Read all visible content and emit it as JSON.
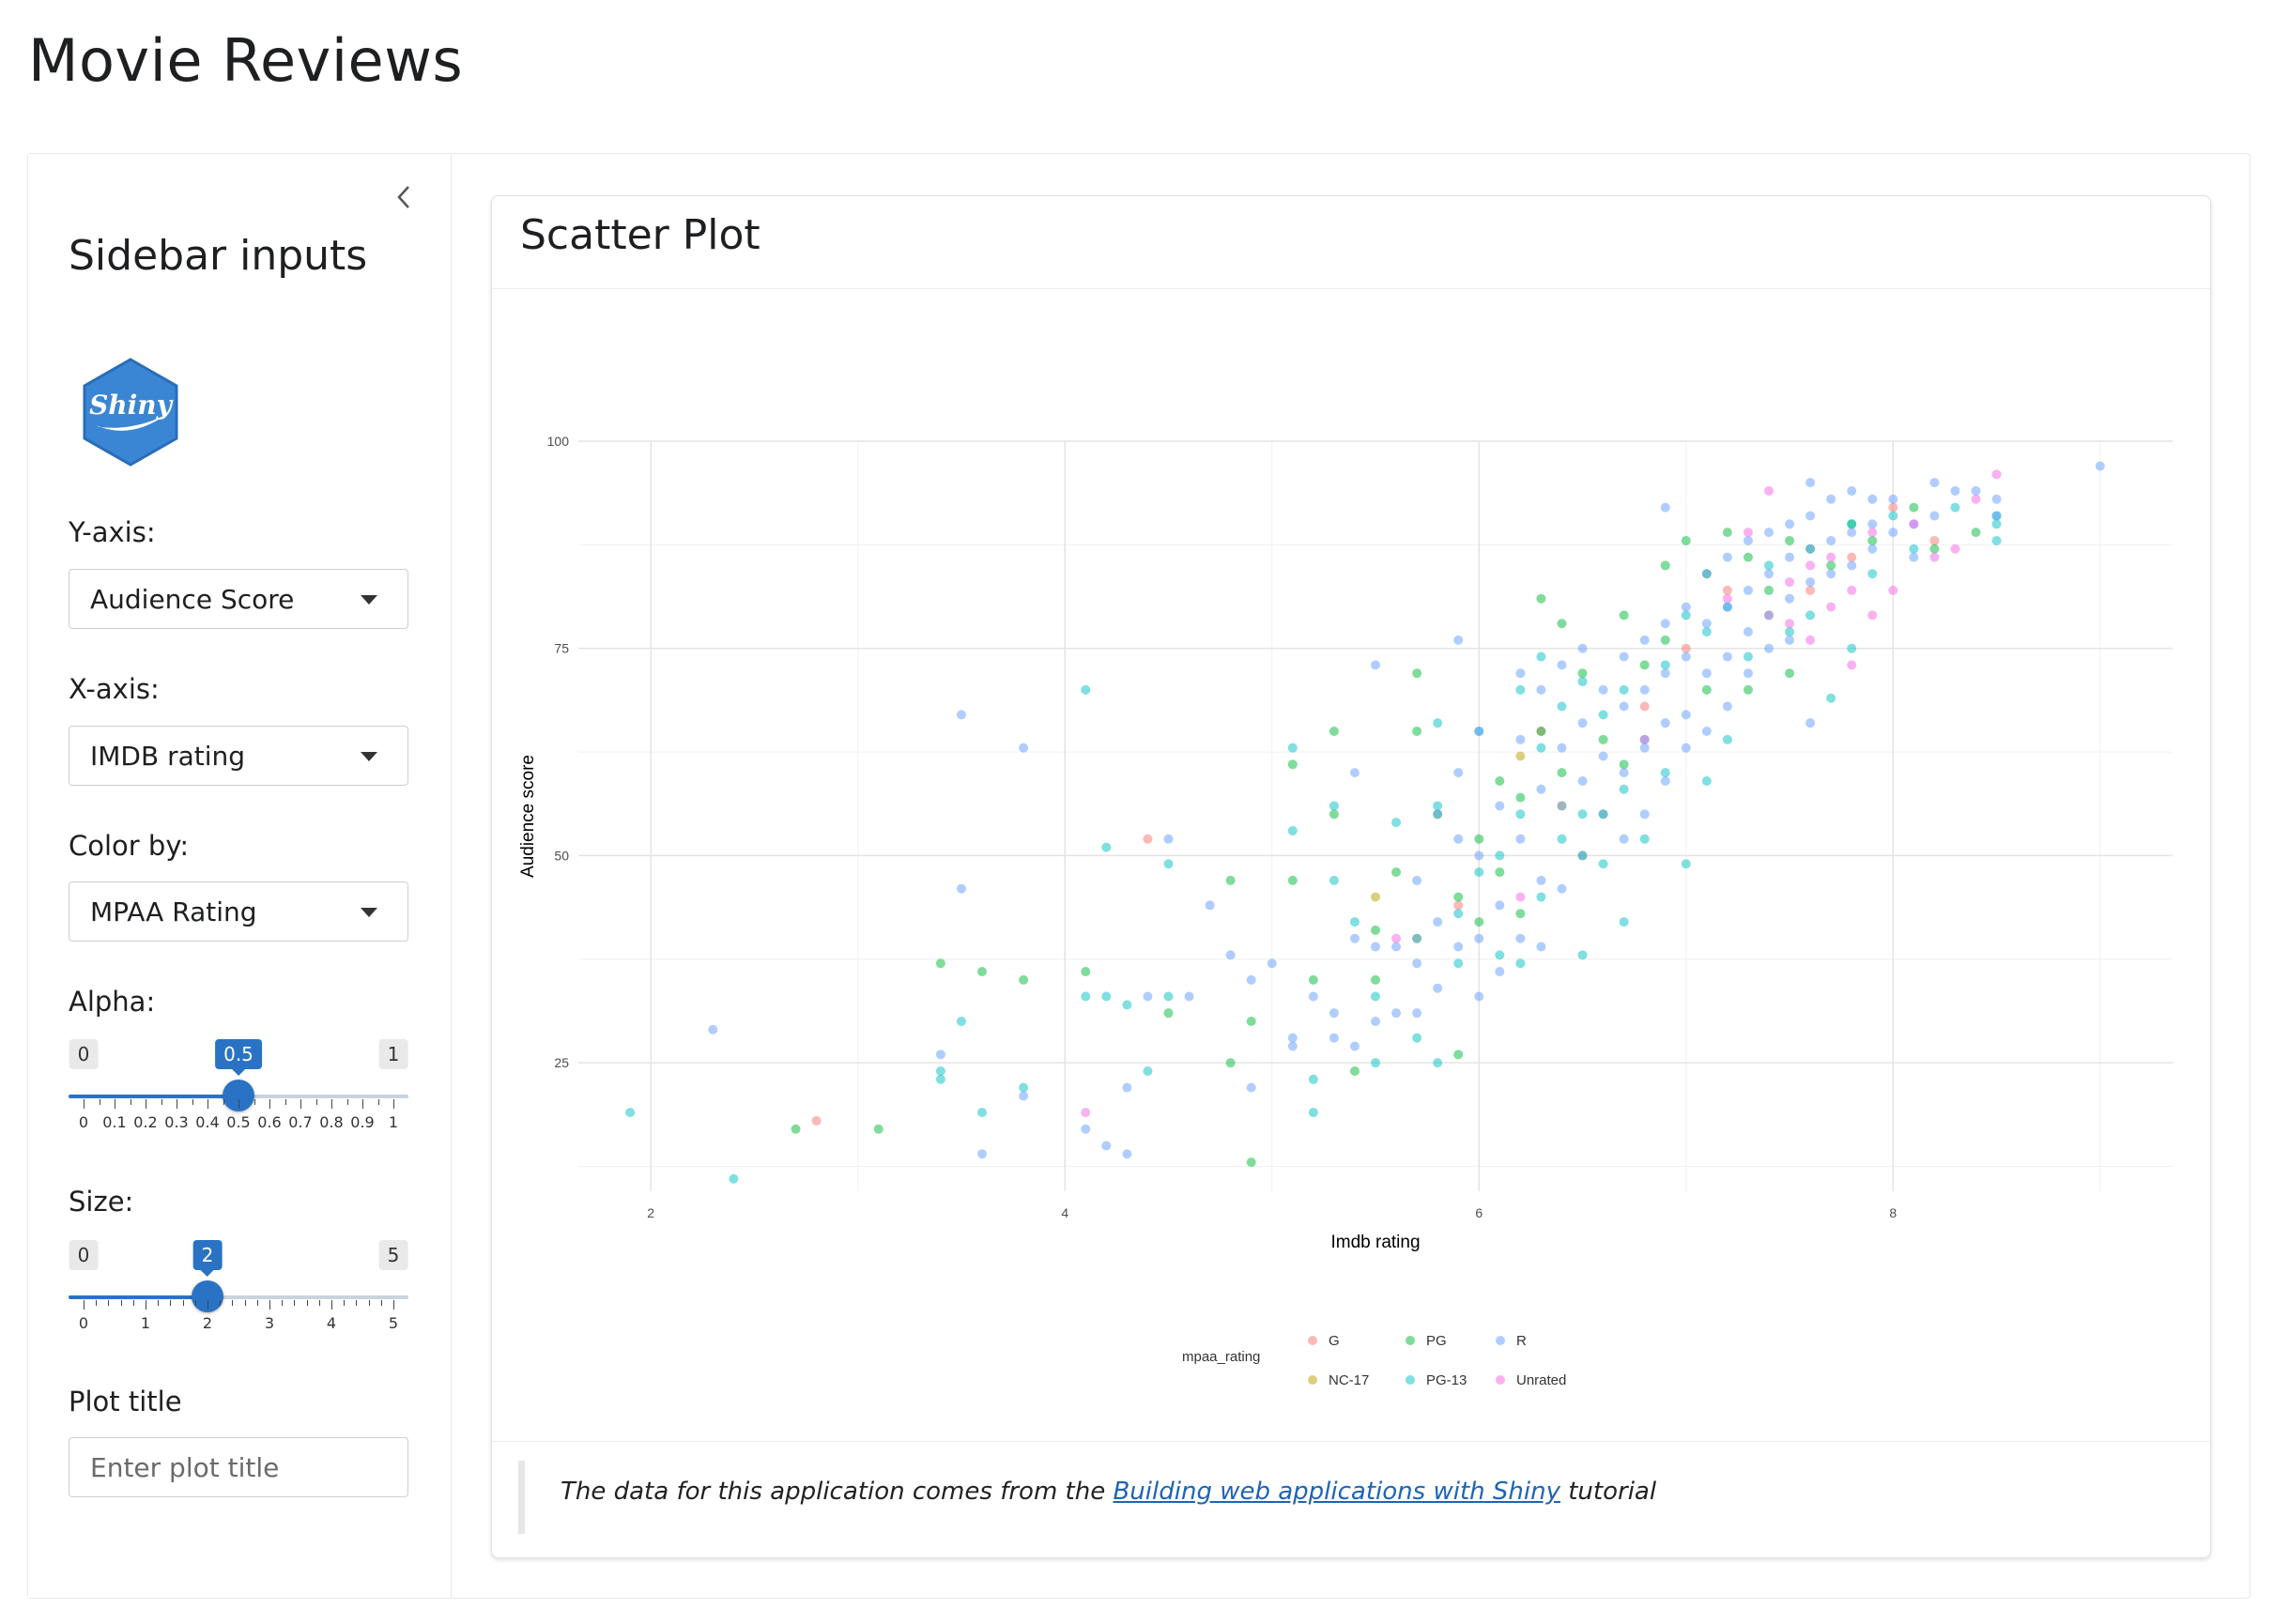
{
  "app": {
    "title": "Movie Reviews"
  },
  "sidebar": {
    "heading": "Sidebar inputs",
    "logo_text": "Shiny",
    "y_axis": {
      "label": "Y-axis:",
      "selected": "Audience Score"
    },
    "x_axis": {
      "label": "X-axis:",
      "selected": "IMDB rating"
    },
    "color_by": {
      "label": "Color by:",
      "selected": "MPAA Rating"
    },
    "alpha": {
      "label": "Alpha:",
      "min": 0,
      "max": 1,
      "value": 0.5,
      "min_label": "0",
      "max_label": "1",
      "value_label": "0.5",
      "tick_labels": [
        "0",
        "0.1",
        "0.2",
        "0.3",
        "0.4",
        "0.5",
        "0.6",
        "0.7",
        "0.8",
        "0.9",
        "1"
      ]
    },
    "size": {
      "label": "Size:",
      "min": 0,
      "max": 5,
      "value": 2,
      "min_label": "0",
      "max_label": "5",
      "value_label": "2",
      "tick_labels": [
        "0",
        "1",
        "2",
        "3",
        "4",
        "5"
      ]
    },
    "plot_title": {
      "label": "Plot title",
      "value": "",
      "placeholder": "Enter plot title"
    }
  },
  "card": {
    "title": "Scatter Plot",
    "footer": {
      "text_before": "The data for this application comes from the ",
      "link_text": "Building web applications with Shiny",
      "text_after": " tutorial"
    }
  },
  "chart_data": {
    "type": "scatter",
    "title": "",
    "xlabel": "Imdb rating",
    "ylabel": "Audience score",
    "xlim": [
      1.65,
      9.35
    ],
    "ylim": [
      9.5,
      100
    ],
    "x_ticks": [
      2,
      4,
      6,
      8
    ],
    "y_ticks": [
      25,
      50,
      75,
      100
    ],
    "grid": true,
    "alpha": 0.5,
    "legend": {
      "title": "mpaa_rating",
      "position": "bottom"
    },
    "colors": {
      "G": "#F8766D",
      "NC-17": "#B79F00",
      "PG": "#00BA38",
      "PG-13": "#00BFC4",
      "R": "#619CFF",
      "Unrated": "#F564E3"
    },
    "series": [
      {
        "name": "G",
        "points": [
          [
            2.8,
            18
          ],
          [
            4.4,
            52
          ],
          [
            5.7,
            40
          ],
          [
            6.8,
            68
          ],
          [
            7.0,
            75
          ],
          [
            7.2,
            82
          ],
          [
            7.4,
            79
          ],
          [
            7.6,
            82
          ],
          [
            7.8,
            86
          ],
          [
            8.0,
            92
          ],
          [
            8.2,
            88
          ],
          [
            6.3,
            65
          ],
          [
            5.9,
            44
          ]
        ]
      },
      {
        "name": "NC-17",
        "points": [
          [
            6.4,
            56
          ],
          [
            6.2,
            62
          ],
          [
            5.5,
            45
          ]
        ]
      },
      {
        "name": "PG",
        "points": [
          [
            2.7,
            17
          ],
          [
            3.1,
            17
          ],
          [
            3.4,
            37
          ],
          [
            3.6,
            36
          ],
          [
            3.8,
            35
          ],
          [
            4.1,
            36
          ],
          [
            4.5,
            31
          ],
          [
            4.8,
            47
          ],
          [
            4.8,
            25
          ],
          [
            4.9,
            30
          ],
          [
            4.9,
            13
          ],
          [
            5.1,
            61
          ],
          [
            5.1,
            47
          ],
          [
            5.2,
            35
          ],
          [
            5.3,
            65
          ],
          [
            5.3,
            55
          ],
          [
            5.4,
            24
          ],
          [
            5.5,
            41
          ],
          [
            5.6,
            48
          ],
          [
            5.7,
            72
          ],
          [
            5.7,
            65
          ],
          [
            5.8,
            55
          ],
          [
            5.9,
            45
          ],
          [
            5.9,
            26
          ],
          [
            6.0,
            52
          ],
          [
            6.1,
            48
          ],
          [
            6.2,
            57
          ],
          [
            6.2,
            43
          ],
          [
            6.3,
            81
          ],
          [
            6.3,
            65
          ],
          [
            6.4,
            78
          ],
          [
            6.4,
            60
          ],
          [
            6.5,
            72
          ],
          [
            6.5,
            50
          ],
          [
            6.6,
            64
          ],
          [
            6.7,
            79
          ],
          [
            6.7,
            61
          ],
          [
            6.8,
            73
          ],
          [
            6.9,
            85
          ],
          [
            6.9,
            76
          ],
          [
            7.0,
            88
          ],
          [
            7.1,
            84
          ],
          [
            7.1,
            70
          ],
          [
            7.2,
            89
          ],
          [
            7.3,
            86
          ],
          [
            7.3,
            70
          ],
          [
            7.4,
            82
          ],
          [
            7.5,
            88
          ],
          [
            7.5,
            72
          ],
          [
            7.6,
            87
          ],
          [
            7.7,
            85
          ],
          [
            7.8,
            90
          ],
          [
            7.9,
            88
          ],
          [
            8.1,
            92
          ],
          [
            8.2,
            87
          ],
          [
            8.4,
            89
          ],
          [
            6.0,
            42
          ],
          [
            5.5,
            35
          ],
          [
            6.6,
            55
          ],
          [
            6.1,
            59
          ]
        ]
      },
      {
        "name": "PG-13",
        "points": [
          [
            1.9,
            19
          ],
          [
            2.4,
            11
          ],
          [
            3.4,
            24
          ],
          [
            3.4,
            23
          ],
          [
            3.5,
            30
          ],
          [
            3.6,
            19
          ],
          [
            3.8,
            22
          ],
          [
            4.1,
            70
          ],
          [
            4.1,
            33
          ],
          [
            4.2,
            51
          ],
          [
            4.2,
            33
          ],
          [
            4.3,
            32
          ],
          [
            4.4,
            24
          ],
          [
            4.5,
            49
          ],
          [
            4.5,
            33
          ],
          [
            5.1,
            53
          ],
          [
            5.1,
            63
          ],
          [
            5.2,
            19
          ],
          [
            5.2,
            23
          ],
          [
            5.3,
            47
          ],
          [
            5.3,
            56
          ],
          [
            5.4,
            42
          ],
          [
            5.5,
            33
          ],
          [
            5.5,
            25
          ],
          [
            5.6,
            54
          ],
          [
            5.7,
            40
          ],
          [
            5.7,
            28
          ],
          [
            5.8,
            66
          ],
          [
            5.8,
            56
          ],
          [
            5.8,
            25
          ],
          [
            5.9,
            43
          ],
          [
            5.9,
            37
          ],
          [
            6.0,
            65
          ],
          [
            6.0,
            48
          ],
          [
            6.1,
            50
          ],
          [
            6.1,
            38
          ],
          [
            6.2,
            70
          ],
          [
            6.2,
            55
          ],
          [
            6.2,
            37
          ],
          [
            6.3,
            74
          ],
          [
            6.3,
            63
          ],
          [
            6.3,
            45
          ],
          [
            6.4,
            68
          ],
          [
            6.4,
            52
          ],
          [
            6.5,
            71
          ],
          [
            6.5,
            55
          ],
          [
            6.5,
            38
          ],
          [
            6.6,
            67
          ],
          [
            6.6,
            49
          ],
          [
            6.7,
            70
          ],
          [
            6.7,
            58
          ],
          [
            6.7,
            42
          ],
          [
            6.8,
            64
          ],
          [
            6.8,
            52
          ],
          [
            6.9,
            73
          ],
          [
            6.9,
            60
          ],
          [
            7.0,
            79
          ],
          [
            7.0,
            49
          ],
          [
            7.1,
            77
          ],
          [
            7.1,
            59
          ],
          [
            7.2,
            80
          ],
          [
            7.2,
            64
          ],
          [
            7.3,
            74
          ],
          [
            7.4,
            85
          ],
          [
            7.5,
            77
          ],
          [
            7.6,
            79
          ],
          [
            7.7,
            69
          ],
          [
            7.8,
            75
          ],
          [
            7.8,
            90
          ],
          [
            7.9,
            84
          ],
          [
            8.0,
            91
          ],
          [
            8.1,
            87
          ],
          [
            8.3,
            92
          ],
          [
            8.5,
            88
          ],
          [
            8.5,
            91
          ],
          [
            8.5,
            90
          ]
        ]
      },
      {
        "name": "R",
        "points": [
          [
            2.3,
            29
          ],
          [
            3.4,
            26
          ],
          [
            3.5,
            67
          ],
          [
            3.5,
            46
          ],
          [
            3.6,
            14
          ],
          [
            3.8,
            63
          ],
          [
            3.8,
            21
          ],
          [
            4.1,
            17
          ],
          [
            4.2,
            15
          ],
          [
            4.3,
            14
          ],
          [
            4.3,
            22
          ],
          [
            4.4,
            33
          ],
          [
            4.5,
            52
          ],
          [
            4.6,
            33
          ],
          [
            4.7,
            44
          ],
          [
            4.8,
            38
          ],
          [
            4.9,
            35
          ],
          [
            4.9,
            22
          ],
          [
            5.0,
            37
          ],
          [
            5.1,
            28
          ],
          [
            5.1,
            27
          ],
          [
            5.2,
            33
          ],
          [
            5.3,
            31
          ],
          [
            5.3,
            28
          ],
          [
            5.4,
            60
          ],
          [
            5.4,
            40
          ],
          [
            5.4,
            27
          ],
          [
            5.5,
            73
          ],
          [
            5.5,
            39
          ],
          [
            5.5,
            30
          ],
          [
            5.6,
            39
          ],
          [
            5.6,
            31
          ],
          [
            5.7,
            47
          ],
          [
            5.7,
            37
          ],
          [
            5.7,
            31
          ],
          [
            5.8,
            55
          ],
          [
            5.8,
            42
          ],
          [
            5.8,
            34
          ],
          [
            5.9,
            76
          ],
          [
            5.9,
            60
          ],
          [
            5.9,
            52
          ],
          [
            5.9,
            39
          ],
          [
            6.0,
            65
          ],
          [
            6.0,
            50
          ],
          [
            6.0,
            40
          ],
          [
            6.0,
            33
          ],
          [
            6.1,
            56
          ],
          [
            6.1,
            44
          ],
          [
            6.1,
            36
          ],
          [
            6.2,
            72
          ],
          [
            6.2,
            64
          ],
          [
            6.2,
            52
          ],
          [
            6.2,
            40
          ],
          [
            6.3,
            70
          ],
          [
            6.3,
            58
          ],
          [
            6.3,
            47
          ],
          [
            6.3,
            39
          ],
          [
            6.4,
            73
          ],
          [
            6.4,
            63
          ],
          [
            6.4,
            56
          ],
          [
            6.4,
            46
          ],
          [
            6.5,
            75
          ],
          [
            6.5,
            66
          ],
          [
            6.5,
            59
          ],
          [
            6.5,
            50
          ],
          [
            6.6,
            70
          ],
          [
            6.6,
            62
          ],
          [
            6.6,
            55
          ],
          [
            6.7,
            74
          ],
          [
            6.7,
            68
          ],
          [
            6.7,
            60
          ],
          [
            6.7,
            52
          ],
          [
            6.8,
            76
          ],
          [
            6.8,
            70
          ],
          [
            6.8,
            63
          ],
          [
            6.8,
            55
          ],
          [
            6.9,
            78
          ],
          [
            6.9,
            72
          ],
          [
            6.9,
            66
          ],
          [
            6.9,
            59
          ],
          [
            6.9,
            92
          ],
          [
            7.0,
            80
          ],
          [
            7.0,
            74
          ],
          [
            7.0,
            67
          ],
          [
            7.1,
            84
          ],
          [
            7.1,
            78
          ],
          [
            7.1,
            72
          ],
          [
            7.1,
            65
          ],
          [
            7.2,
            86
          ],
          [
            7.2,
            80
          ],
          [
            7.2,
            74
          ],
          [
            7.2,
            68
          ],
          [
            7.3,
            88
          ],
          [
            7.3,
            82
          ],
          [
            7.3,
            77
          ],
          [
            7.3,
            72
          ],
          [
            7.4,
            89
          ],
          [
            7.4,
            84
          ],
          [
            7.4,
            79
          ],
          [
            7.4,
            75
          ],
          [
            7.5,
            90
          ],
          [
            7.5,
            86
          ],
          [
            7.5,
            81
          ],
          [
            7.5,
            76
          ],
          [
            7.6,
            91
          ],
          [
            7.6,
            87
          ],
          [
            7.6,
            83
          ],
          [
            7.6,
            66
          ],
          [
            7.7,
            93
          ],
          [
            7.7,
            88
          ],
          [
            7.7,
            84
          ],
          [
            7.8,
            94
          ],
          [
            7.8,
            89
          ],
          [
            7.8,
            85
          ],
          [
            7.9,
            93
          ],
          [
            7.9,
            90
          ],
          [
            7.9,
            87
          ],
          [
            8.0,
            93
          ],
          [
            8.0,
            89
          ],
          [
            8.1,
            90
          ],
          [
            8.1,
            86
          ],
          [
            8.2,
            95
          ],
          [
            8.2,
            91
          ],
          [
            8.3,
            94
          ],
          [
            8.4,
            94
          ],
          [
            8.5,
            93
          ],
          [
            8.5,
            91
          ],
          [
            9.0,
            97
          ],
          [
            7.6,
            95
          ],
          [
            7.0,
            63
          ]
        ]
      },
      {
        "name": "Unrated",
        "points": [
          [
            4.1,
            19
          ],
          [
            5.6,
            40
          ],
          [
            6.2,
            45
          ],
          [
            6.8,
            64
          ],
          [
            7.2,
            81
          ],
          [
            7.3,
            89
          ],
          [
            7.4,
            94
          ],
          [
            7.5,
            83
          ],
          [
            7.5,
            78
          ],
          [
            7.6,
            76
          ],
          [
            7.7,
            80
          ],
          [
            7.7,
            86
          ],
          [
            7.8,
            82
          ],
          [
            7.8,
            73
          ],
          [
            7.9,
            89
          ],
          [
            8.0,
            82
          ],
          [
            8.1,
            90
          ],
          [
            8.2,
            86
          ],
          [
            8.3,
            87
          ],
          [
            8.4,
            93
          ],
          [
            8.5,
            96
          ],
          [
            7.9,
            79
          ],
          [
            7.6,
            85
          ]
        ]
      }
    ]
  }
}
